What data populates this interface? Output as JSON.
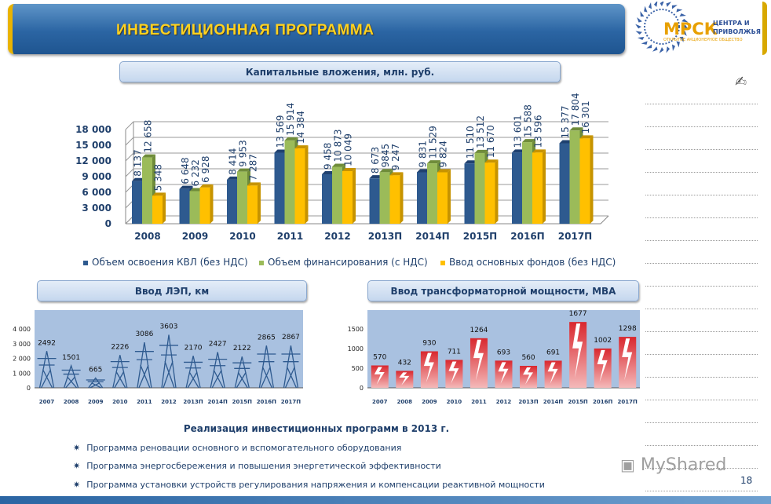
{
  "header": {
    "title": "ИНВЕСТИЦИОННАЯ ПРОГРАММА"
  },
  "logo": {
    "name": "МРСК",
    "line1": "ЦЕНТРА И",
    "line2": "ПРИВОЛЖЬЯ",
    "line3": "ОТКРЫТОЕ АКЦИОНЕРНОЕ ОБЩЕСТВО"
  },
  "icons": {
    "pen": "pen-writing-icon",
    "bullet": "star-bullet-icon"
  },
  "colors": {
    "blue": "#2e5a8f",
    "green": "#9bbb59",
    "yellow": "#ffc000",
    "lep_bg": "#a9c1e0",
    "trafo_bar": "#d9272e"
  },
  "chart_data": [
    {
      "type": "bar",
      "title": "Капитальные вложения, млн. руб.",
      "ylim": [
        0,
        18000
      ],
      "yticks": [
        "0",
        "3 000",
        "6 000",
        "9 000",
        "12 000",
        "15 000",
        "18 000"
      ],
      "grid": true,
      "legend_position": "bottom",
      "categories": [
        "2008",
        "2009",
        "2010",
        "2011",
        "2012",
        "2013П",
        "2014П",
        "2015П",
        "2016П",
        "2017П"
      ],
      "series": [
        {
          "name": "Объем освоения КВЛ (без НДС)",
          "values": [
            8137,
            6648,
            8414,
            13569,
            9458,
            8673,
            9831,
            11510,
            13601,
            15377
          ],
          "labels": [
            "8 137",
            "6 648",
            "8 414",
            "13 569",
            "9 458",
            "8 673",
            "9 831",
            "11 510",
            "13 601",
            "15 377"
          ]
        },
        {
          "name": "Объем финансирования (с НДС)",
          "values": [
            12658,
            6232,
            9953,
            15914,
            10873,
            9845,
            11529,
            13512,
            15588,
            17804
          ],
          "labels": [
            "12 658",
            "6 232",
            "9 953",
            "15 914",
            "10 873",
            "9845",
            "11 529",
            "13 512",
            "15 588",
            "17 804"
          ]
        },
        {
          "name": "Ввод основных фондов (без НДС)",
          "values": [
            5348,
            6928,
            7287,
            14384,
            10049,
            9247,
            9824,
            11670,
            13596,
            16301
          ],
          "labels": [
            "5 348",
            "6 928",
            "7 287",
            "14 384",
            "10 049",
            "9 247",
            "9 824",
            "11 670",
            "13 596",
            "16 301"
          ]
        }
      ]
    },
    {
      "type": "bar",
      "title": "Ввод ЛЭП, км",
      "ylim": [
        0,
        4000
      ],
      "yticks": [
        "0",
        "1 000",
        "2 000",
        "3 000",
        "4 000"
      ],
      "categories": [
        "2007",
        "2008",
        "2009",
        "2010",
        "2011",
        "2012",
        "2013П",
        "2014П",
        "2015П",
        "2016П",
        "2017П"
      ],
      "values": [
        2492,
        1501,
        665,
        2226,
        3086,
        3603,
        2170,
        2427,
        2122,
        2865,
        2867
      ]
    },
    {
      "type": "bar",
      "title": "Ввод трансформаторной мощности, МВА",
      "ylim": [
        0,
        2000
      ],
      "yticks": [
        "0",
        "500",
        "1000",
        "1500"
      ],
      "categories": [
        "2007",
        "2008",
        "2009",
        "2010",
        "2011",
        "2012",
        "2013П",
        "2014П",
        "2015П",
        "2016П",
        "2017П"
      ],
      "values": [
        570,
        432,
        930,
        711,
        1264,
        693,
        560,
        691,
        1677,
        1002,
        1298
      ]
    }
  ],
  "realization": {
    "title": "Реализация инвестиционных программ в 2013 г.",
    "items": [
      "Программа реновации основного и вспомогательного оборудования",
      "Программа энергосбережения и повышения энергетической эффективности",
      "Программа установки устройств регулирования напряжения и компенсации реактивной мощности"
    ]
  },
  "watermark": "MyShared",
  "page_number": "18"
}
